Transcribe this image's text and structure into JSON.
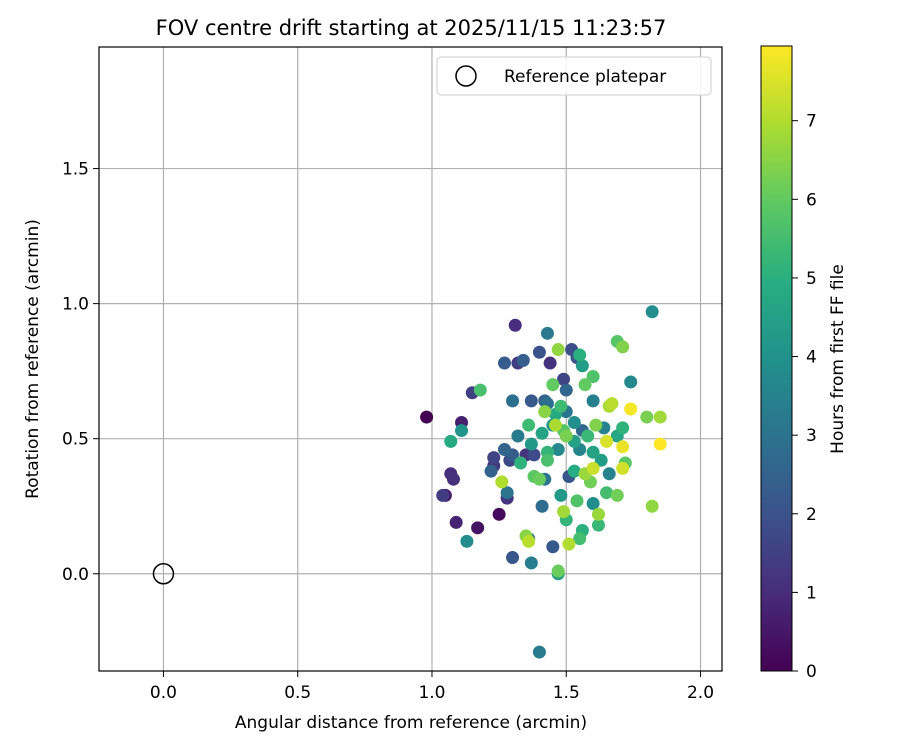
{
  "chart_data": {
    "type": "scatter",
    "title": "FOV centre drift starting at 2025/11/15 11:23:57",
    "xlabel": "Angular distance from reference (arcmin)",
    "ylabel": "Rotation from reference (arcmin)",
    "xlim": [
      -0.24,
      2.08
    ],
    "ylim": [
      -0.36,
      1.95
    ],
    "xticks": [
      0.0,
      0.5,
      1.0,
      1.5,
      2.0
    ],
    "xtick_labels": [
      "0.0",
      "0.5",
      "1.0",
      "1.5",
      "2.0"
    ],
    "yticks": [
      0.0,
      0.5,
      1.0,
      1.5
    ],
    "ytick_labels": [
      "0.0",
      "0.5",
      "1.0",
      "1.5"
    ],
    "grid": true,
    "legend": {
      "position": "top-right",
      "label": "Reference platepar"
    },
    "reference_point": {
      "x": 0.0,
      "y": 0.0
    },
    "colorbar": {
      "label": "Hours from first FF file",
      "range": [
        0,
        7.95
      ],
      "ticks": [
        0,
        1,
        2,
        3,
        4,
        5,
        6,
        7
      ],
      "tick_labels": [
        "0",
        "1",
        "2",
        "3",
        "4",
        "5",
        "6",
        "7"
      ],
      "colormap": "viridis"
    },
    "points": [
      {
        "x": 0.98,
        "y": 0.58,
        "h": 0.0
      },
      {
        "x": 1.25,
        "y": 0.22,
        "h": 0.2
      },
      {
        "x": 1.17,
        "y": 0.17,
        "h": 0.4
      },
      {
        "x": 1.05,
        "y": 0.29,
        "h": 0.6
      },
      {
        "x": 1.11,
        "y": 0.56,
        "h": 0.7
      },
      {
        "x": 1.09,
        "y": 0.19,
        "h": 0.8
      },
      {
        "x": 1.07,
        "y": 0.37,
        "h": 1.0
      },
      {
        "x": 1.08,
        "y": 0.35,
        "h": 1.1
      },
      {
        "x": 1.31,
        "y": 0.92,
        "h": 1.0
      },
      {
        "x": 1.44,
        "y": 0.78,
        "h": 1.1
      },
      {
        "x": 1.35,
        "y": 0.44,
        "h": 1.2
      },
      {
        "x": 1.04,
        "y": 0.29,
        "h": 1.4
      },
      {
        "x": 1.28,
        "y": 0.28,
        "h": 1.2
      },
      {
        "x": 1.23,
        "y": 0.4,
        "h": 1.3
      },
      {
        "x": 1.15,
        "y": 0.67,
        "h": 1.5
      },
      {
        "x": 1.32,
        "y": 0.78,
        "h": 1.4
      },
      {
        "x": 1.23,
        "y": 0.43,
        "h": 1.6
      },
      {
        "x": 1.29,
        "y": 0.42,
        "h": 1.7
      },
      {
        "x": 1.38,
        "y": 0.44,
        "h": 1.8
      },
      {
        "x": 1.49,
        "y": 0.72,
        "h": 1.6
      },
      {
        "x": 1.52,
        "y": 0.83,
        "h": 1.9
      },
      {
        "x": 1.54,
        "y": 0.8,
        "h": 2.0
      },
      {
        "x": 1.4,
        "y": 0.82,
        "h": 2.0
      },
      {
        "x": 1.3,
        "y": 0.06,
        "h": 2.1
      },
      {
        "x": 1.45,
        "y": 0.1,
        "h": 2.2
      },
      {
        "x": 1.51,
        "y": 0.36,
        "h": 2.1
      },
      {
        "x": 1.27,
        "y": 0.78,
        "h": 2.3
      },
      {
        "x": 1.34,
        "y": 0.79,
        "h": 2.4
      },
      {
        "x": 1.37,
        "y": 0.64,
        "h": 2.2
      },
      {
        "x": 1.3,
        "y": 0.44,
        "h": 2.3
      },
      {
        "x": 1.22,
        "y": 0.38,
        "h": 2.5
      },
      {
        "x": 1.27,
        "y": 0.46,
        "h": 2.6
      },
      {
        "x": 1.42,
        "y": 0.64,
        "h": 2.5
      },
      {
        "x": 1.5,
        "y": 0.68,
        "h": 2.6
      },
      {
        "x": 1.56,
        "y": 0.53,
        "h": 2.7
      },
      {
        "x": 1.41,
        "y": 0.25,
        "h": 2.8
      },
      {
        "x": 1.3,
        "y": 0.64,
        "h": 2.9
      },
      {
        "x": 1.43,
        "y": 0.63,
        "h": 2.9
      },
      {
        "x": 1.36,
        "y": 0.13,
        "h": 3.0
      },
      {
        "x": 1.28,
        "y": 0.3,
        "h": 3.0
      },
      {
        "x": 1.42,
        "y": 0.35,
        "h": 3.1
      },
      {
        "x": 1.5,
        "y": 0.6,
        "h": 3.1
      },
      {
        "x": 1.43,
        "y": 0.89,
        "h": 3.2
      },
      {
        "x": 1.4,
        "y": -0.29,
        "h": 3.3
      },
      {
        "x": 1.37,
        "y": 0.04,
        "h": 3.4
      },
      {
        "x": 1.32,
        "y": 0.51,
        "h": 3.3
      },
      {
        "x": 1.6,
        "y": 0.64,
        "h": 3.4
      },
      {
        "x": 1.66,
        "y": 0.37,
        "h": 3.5
      },
      {
        "x": 1.64,
        "y": 0.54,
        "h": 3.5
      },
      {
        "x": 1.55,
        "y": 0.46,
        "h": 3.6
      },
      {
        "x": 1.47,
        "y": 0.46,
        "h": 3.7
      },
      {
        "x": 1.74,
        "y": 0.71,
        "h": 3.7
      },
      {
        "x": 1.13,
        "y": 0.12,
        "h": 3.8
      },
      {
        "x": 1.82,
        "y": 0.97,
        "h": 3.8
      },
      {
        "x": 1.6,
        "y": 0.26,
        "h": 3.9
      },
      {
        "x": 1.53,
        "y": 0.56,
        "h": 3.9
      },
      {
        "x": 1.45,
        "y": 0.55,
        "h": 4.0
      },
      {
        "x": 1.11,
        "y": 0.53,
        "h": 4.1
      },
      {
        "x": 1.37,
        "y": 0.48,
        "h": 4.2
      },
      {
        "x": 1.48,
        "y": 0.29,
        "h": 4.3
      },
      {
        "x": 1.56,
        "y": 0.77,
        "h": 4.4
      },
      {
        "x": 1.63,
        "y": 0.42,
        "h": 4.4
      },
      {
        "x": 1.47,
        "y": 0.0,
        "h": 4.5
      },
      {
        "x": 1.53,
        "y": 0.49,
        "h": 4.5
      },
      {
        "x": 1.41,
        "y": 0.52,
        "h": 4.6
      },
      {
        "x": 1.6,
        "y": 0.45,
        "h": 4.6
      },
      {
        "x": 1.69,
        "y": 0.51,
        "h": 4.7
      },
      {
        "x": 1.07,
        "y": 0.49,
        "h": 4.8
      },
      {
        "x": 1.46,
        "y": 0.59,
        "h": 4.8
      },
      {
        "x": 1.53,
        "y": 0.38,
        "h": 4.9
      },
      {
        "x": 1.56,
        "y": 0.16,
        "h": 5.0
      },
      {
        "x": 1.55,
        "y": 0.81,
        "h": 5.0
      },
      {
        "x": 1.71,
        "y": 0.54,
        "h": 5.1
      },
      {
        "x": 1.33,
        "y": 0.41,
        "h": 5.1
      },
      {
        "x": 1.43,
        "y": 0.45,
        "h": 5.2
      },
      {
        "x": 1.5,
        "y": 0.2,
        "h": 5.2
      },
      {
        "x": 1.62,
        "y": 0.18,
        "h": 5.3
      },
      {
        "x": 1.58,
        "y": 0.51,
        "h": 5.3
      },
      {
        "x": 1.48,
        "y": 0.62,
        "h": 5.4
      },
      {
        "x": 1.36,
        "y": 0.55,
        "h": 5.4
      },
      {
        "x": 1.55,
        "y": 0.13,
        "h": 5.5
      },
      {
        "x": 1.65,
        "y": 0.3,
        "h": 5.5
      },
      {
        "x": 1.18,
        "y": 0.68,
        "h": 5.6
      },
      {
        "x": 1.43,
        "y": 0.42,
        "h": 5.6
      },
      {
        "x": 1.54,
        "y": 0.27,
        "h": 5.7
      },
      {
        "x": 1.6,
        "y": 0.73,
        "h": 5.7
      },
      {
        "x": 1.69,
        "y": 0.86,
        "h": 5.8
      },
      {
        "x": 1.49,
        "y": 0.53,
        "h": 5.8
      },
      {
        "x": 1.38,
        "y": 0.36,
        "h": 5.9
      },
      {
        "x": 1.72,
        "y": 0.41,
        "h": 5.9
      },
      {
        "x": 1.45,
        "y": 0.7,
        "h": 6.0
      },
      {
        "x": 1.57,
        "y": 0.7,
        "h": 6.0
      },
      {
        "x": 1.4,
        "y": 0.35,
        "h": 6.1
      },
      {
        "x": 1.47,
        "y": 0.01,
        "h": 6.1
      },
      {
        "x": 1.59,
        "y": 0.34,
        "h": 6.2
      },
      {
        "x": 1.69,
        "y": 0.29,
        "h": 6.2
      },
      {
        "x": 1.8,
        "y": 0.58,
        "h": 6.3
      },
      {
        "x": 1.5,
        "y": 0.51,
        "h": 6.3
      },
      {
        "x": 1.61,
        "y": 0.55,
        "h": 6.4
      },
      {
        "x": 1.71,
        "y": 0.84,
        "h": 6.4
      },
      {
        "x": 1.42,
        "y": 0.6,
        "h": 6.5
      },
      {
        "x": 1.35,
        "y": 0.14,
        "h": 6.5
      },
      {
        "x": 1.82,
        "y": 0.25,
        "h": 6.6
      },
      {
        "x": 1.47,
        "y": 0.83,
        "h": 6.6
      },
      {
        "x": 1.57,
        "y": 0.37,
        "h": 6.7
      },
      {
        "x": 1.62,
        "y": 0.22,
        "h": 6.7
      },
      {
        "x": 1.85,
        "y": 0.58,
        "h": 6.8
      },
      {
        "x": 1.49,
        "y": 0.23,
        "h": 6.8
      },
      {
        "x": 1.46,
        "y": 0.55,
        "h": 6.9
      },
      {
        "x": 1.66,
        "y": 0.62,
        "h": 6.9
      },
      {
        "x": 1.51,
        "y": 0.11,
        "h": 7.0
      },
      {
        "x": 1.26,
        "y": 0.34,
        "h": 7.0
      },
      {
        "x": 1.36,
        "y": 0.12,
        "h": 7.1
      },
      {
        "x": 1.67,
        "y": 0.63,
        "h": 7.1
      },
      {
        "x": 1.6,
        "y": 0.39,
        "h": 7.3
      },
      {
        "x": 1.71,
        "y": 0.39,
        "h": 7.4
      },
      {
        "x": 1.65,
        "y": 0.49,
        "h": 7.5
      },
      {
        "x": 1.71,
        "y": 0.47,
        "h": 7.7
      },
      {
        "x": 1.74,
        "y": 0.61,
        "h": 7.85
      },
      {
        "x": 1.85,
        "y": 0.48,
        "h": 7.95
      }
    ]
  }
}
